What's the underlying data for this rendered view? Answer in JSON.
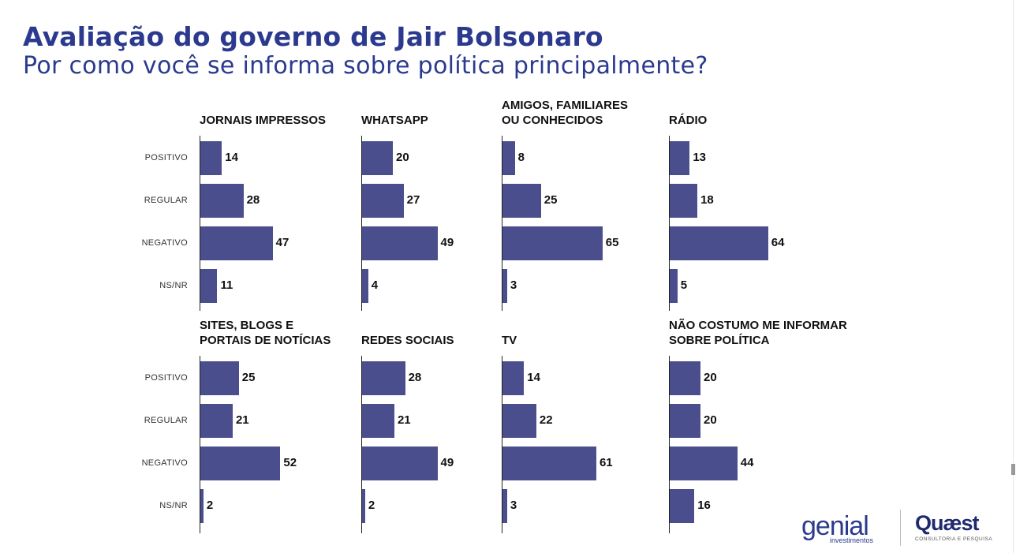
{
  "title": "Avaliação do governo de Jair Bolsonaro",
  "subtitle": "Por como você se informa sobre política principalmente?",
  "colors": {
    "bar": "#4a4e8c",
    "title": "#2b3a8e"
  },
  "logos": {
    "genial": "genial",
    "genial_sub": "investimentos",
    "quaest": "Quæst",
    "quaest_sub": "CONSULTORIA E PESQUISA"
  },
  "chart_data": [
    {
      "type": "bar",
      "title": "JORNAIS IMPRESSOS",
      "categories": [
        "POSITIVO",
        "REGULAR",
        "NEGATIVO",
        "NS/NR"
      ],
      "values": [
        14,
        28,
        47,
        11
      ]
    },
    {
      "type": "bar",
      "title": "WHATSAPP",
      "categories": [
        "POSITIVO",
        "REGULAR",
        "NEGATIVO",
        "NS/NR"
      ],
      "values": [
        20,
        27,
        49,
        4
      ]
    },
    {
      "type": "bar",
      "title": "AMIGOS, FAMILIARES\nOU CONHECIDOS",
      "categories": [
        "POSITIVO",
        "REGULAR",
        "NEGATIVO",
        "NS/NR"
      ],
      "values": [
        8,
        25,
        65,
        3
      ]
    },
    {
      "type": "bar",
      "title": "RÁDIO",
      "categories": [
        "POSITIVO",
        "REGULAR",
        "NEGATIVO",
        "NS/NR"
      ],
      "values": [
        13,
        18,
        64,
        5
      ]
    },
    {
      "type": "bar",
      "title": "SITES, BLOGS E\nPORTAIS DE NOTÍCIAS",
      "categories": [
        "POSITIVO",
        "REGULAR",
        "NEGATIVO",
        "NS/NR"
      ],
      "values": [
        25,
        21,
        52,
        2
      ]
    },
    {
      "type": "bar",
      "title": "REDES SOCIAIS",
      "categories": [
        "POSITIVO",
        "REGULAR",
        "NEGATIVO",
        "NS/NR"
      ],
      "values": [
        28,
        21,
        49,
        2
      ]
    },
    {
      "type": "bar",
      "title": "TV",
      "categories": [
        "POSITIVO",
        "REGULAR",
        "NEGATIVO",
        "NS/NR"
      ],
      "values": [
        14,
        22,
        61,
        3
      ]
    },
    {
      "type": "bar",
      "title": "NÃO COSTUMO ME INFORMAR\nSOBRE POLÍTICA",
      "categories": [
        "POSITIVO",
        "REGULAR",
        "NEGATIVO",
        "NS/NR"
      ],
      "values": [
        20,
        20,
        44,
        16
      ]
    }
  ]
}
